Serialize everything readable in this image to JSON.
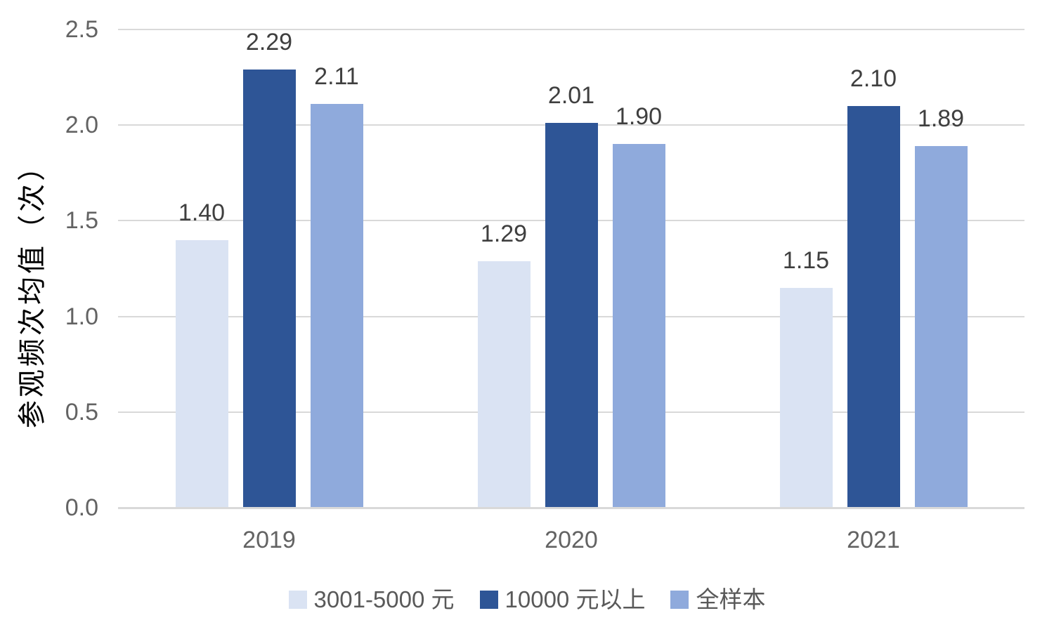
{
  "chart_data": {
    "type": "bar",
    "title": "",
    "ylabel": "参观频次均值（次）",
    "xlabel": "",
    "ylim": [
      0,
      2.5
    ],
    "yticks": [
      0,
      0.5,
      1,
      1.5,
      2,
      2.5
    ],
    "ytick_labels": [
      "0.0",
      "0.5",
      "1.0",
      "1.5",
      "2.0",
      "2.5"
    ],
    "categories": [
      "2019",
      "2020",
      "2021"
    ],
    "series": [
      {
        "name": "3001-5000 元",
        "color": "#dae3f3",
        "values": [
          1.4,
          1.29,
          1.15
        ],
        "value_labels": [
          "1.40",
          "1.29",
          "1.15"
        ]
      },
      {
        "name": "10000 元以上",
        "color": "#2e5596",
        "values": [
          2.29,
          2.01,
          2.1
        ],
        "value_labels": [
          "2.29",
          "2.01",
          "2.10"
        ]
      },
      {
        "name": "全样本",
        "color": "#8faadc",
        "values": [
          2.11,
          1.9,
          1.89
        ],
        "value_labels": [
          "2.11",
          "1.90",
          "1.89"
        ]
      }
    ],
    "legend_position": "bottom",
    "grid": true,
    "colors": {
      "gridline": "#d9d9d9",
      "axis_line": "#d9d9d9",
      "tick_label": "#636363",
      "value_label": "#3f3f3f",
      "legend_text": "#595959",
      "background": "#ffffff"
    }
  }
}
